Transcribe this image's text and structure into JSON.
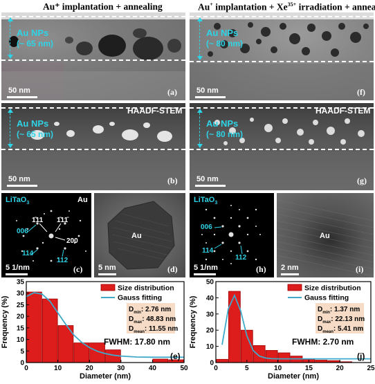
{
  "columns": {
    "left_title": "Au⁺ implantation + annealing",
    "right_title_parts": [
      "Au",
      "+",
      " implantation + Xe",
      "35+",
      " irradiation + annealing"
    ]
  },
  "panels": {
    "a": {
      "label": "(a)",
      "np_label": "Au NPs",
      "np_size": "(~ 65 nm)",
      "scale": "50 nm"
    },
    "f": {
      "label": "(f)",
      "np_label": "Au NPs",
      "np_size": "(~ 80 nm)",
      "scale": "50 nm"
    },
    "b": {
      "label": "(b)",
      "np_label": "Au NPs",
      "np_size": "(~ 65 nm)",
      "scale": "50 nm",
      "tag": "HAADF-STEM"
    },
    "g": {
      "label": "(g)",
      "np_label": "Au NPs",
      "np_size": "(~ 80 nm)",
      "scale": "50 nm",
      "tag": "HAADF-STEM"
    },
    "c": {
      "label": "(c)",
      "material": "LiTaO",
      "material_sub": "3",
      "corner": "Au",
      "scale": "5 1/nm",
      "indices_cyan": [
        "006",
        "114",
        "112"
      ],
      "indices_white": [
        "1̄11",
        "1̄11̄",
        "200"
      ]
    },
    "d": {
      "label": "(d)",
      "center": "Au",
      "scale": "5 nm"
    },
    "h": {
      "label": "(h)",
      "material": "LiTaO",
      "material_sub": "3",
      "scale": "5 1/nm",
      "indices_cyan": [
        "006",
        "114",
        "112"
      ]
    },
    "i": {
      "label": "(i)",
      "center": "Au",
      "scale": "2 nm"
    }
  },
  "colors": {
    "bar": "#dd1c1c",
    "bar_edge": "#a00000",
    "fit": "#3fa9c9",
    "cyan": "#2fd3e6",
    "stats_box": "#f6dcc6"
  },
  "chart_data": [
    {
      "type": "bar",
      "panel": "(e)",
      "bin_width": 5,
      "x": [
        2.5,
        7.5,
        12.5,
        17.5,
        22.5,
        27.5,
        32.5,
        37.5,
        42.5,
        47.5
      ],
      "values": [
        30.5,
        27.5,
        16,
        8.5,
        8.5,
        5.5,
        0,
        0,
        1.5,
        1.2
      ],
      "fit_curve": {
        "x": [
          0,
          2.5,
          5,
          7.5,
          10,
          12.5,
          15,
          17.5,
          20,
          22.5,
          25,
          27.5,
          30,
          35,
          40,
          45,
          50
        ],
        "y": [
          28.5,
          30.2,
          29.6,
          26.5,
          21.5,
          16.5,
          12,
          8.8,
          6.5,
          4.9,
          3.9,
          3.2,
          2.8,
          2.4,
          2.3,
          2.3,
          2.3
        ]
      },
      "xlim": [
        0,
        50
      ],
      "ylim": [
        0,
        35
      ],
      "xticks": [
        0,
        10,
        20,
        30,
        40,
        50
      ],
      "yticks": [
        0,
        5,
        10,
        15,
        20,
        25,
        30,
        35
      ],
      "xlabel": "Diameter (nm)",
      "ylabel": "Frequency (%)",
      "legend": {
        "bars": "Size distribution",
        "line": "Gauss fitting"
      },
      "stats": {
        "min_label": "D",
        "min_sub": "min",
        "min_value": ": 2.76 nm",
        "max_label": "D",
        "max_sub": "max",
        "max_value": ": 48.83 nm",
        "mean_label": "D",
        "mean_sub": "mean",
        "mean_value": ": 11.55 nm"
      },
      "fwhm": "FWHM: 17.80 nm"
    },
    {
      "type": "bar",
      "panel": "(j)",
      "bin_width": 2,
      "x": [
        1,
        3,
        5,
        7,
        9,
        11,
        13,
        15,
        17,
        19,
        21,
        23
      ],
      "values": [
        2,
        44,
        20,
        10.5,
        7.5,
        6,
        4,
        2,
        1.5,
        1.2,
        0.5,
        0
      ],
      "fit_curve": {
        "x": [
          1,
          2,
          3,
          4,
          5,
          6,
          7,
          8,
          9,
          10,
          12,
          14,
          16,
          18,
          20,
          22,
          25
        ],
        "y": [
          11,
          33,
          41.5,
          32,
          16.5,
          7.5,
          4,
          2.8,
          2.4,
          2.3,
          2.3,
          2.3,
          2.3,
          2.3,
          2.3,
          2.3,
          2.3
        ]
      },
      "xlim": [
        0,
        25
      ],
      "ylim": [
        0,
        50
      ],
      "xticks": [
        0,
        5,
        10,
        15,
        20,
        25
      ],
      "yticks": [
        0,
        10,
        20,
        30,
        40,
        50
      ],
      "xlabel": "Diameter (nm)",
      "ylabel": "Frequency (%)",
      "legend": {
        "bars": "Size distribution",
        "line": "Gauss fitting"
      },
      "stats": {
        "min_label": "D",
        "min_sub": "min",
        "min_value": ": 1.37 nm",
        "max_label": "D",
        "max_sub": "max",
        "max_value": ": 22.13 nm",
        "mean_label": "D",
        "mean_sub": "mean",
        "mean_value": ": 5.41 nm"
      },
      "fwhm": "FWHM: 2.70 nm"
    }
  ]
}
